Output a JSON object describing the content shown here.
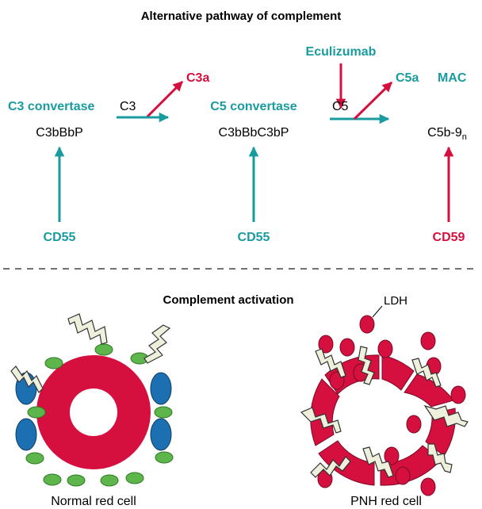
{
  "colors": {
    "teal": "#1a9ba0",
    "red": "#d5103f",
    "blue": "#1c6fb0",
    "green": "#5db54c",
    "black": "#000000"
  },
  "title": "Alternative pathway of complement",
  "pathway": {
    "c3_convertase": {
      "label": "C3 convertase",
      "complex": "C3bBbP"
    },
    "c3_input": "C3",
    "c3a": "C3a",
    "c5_convertase": {
      "label": "C5 convertase",
      "complex": "C3bBbC3bP"
    },
    "c5_input": "C5",
    "c5a": "C5a",
    "mac": "MAC",
    "eculizumab": "Eculizumab",
    "mac_complex": "C5b-9",
    "mac_complex_sub": "n",
    "regulator_cd55_1": "CD55",
    "regulator_cd55_2": "CD55",
    "regulator_cd59": "CD59"
  },
  "activation": {
    "title": "Complement activation",
    "ldh": "LDH",
    "normal_cell": "Normal red cell",
    "pnh_cell": "PNH red cell"
  }
}
